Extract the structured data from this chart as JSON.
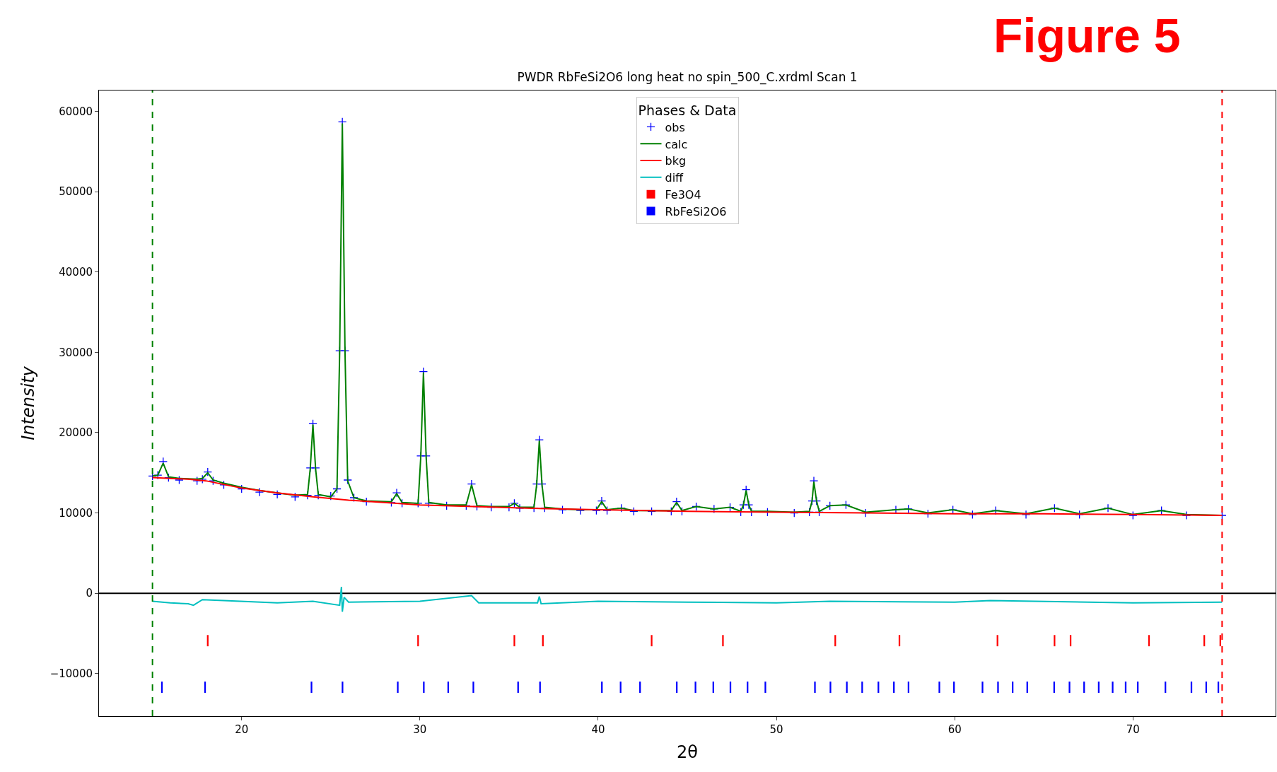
{
  "chart_data": {
    "type": "line",
    "title": "PWDR RbFeSi2O6 long heat no spin_500_C.xrdml Scan 1",
    "xlabel": "2θ",
    "ylabel": "Intensity",
    "legend_title": "Phases & Data",
    "legend": "top",
    "grid": false,
    "annotations": [
      "Figure 5"
    ],
    "xlim": [
      12,
      78
    ],
    "xticks": [
      20,
      30,
      40,
      50,
      60,
      70
    ],
    "ylim": [
      -15300,
      62600
    ],
    "yticks": [
      {
        "value": -10000,
        "label": "−10000"
      },
      0,
      10000,
      20000,
      30000,
      40000,
      50000,
      60000
    ],
    "ref_lines": [
      {
        "axis": "x",
        "value": 15,
        "color": "#008000",
        "line_style": "dashed"
      },
      {
        "axis": "x",
        "value": 75,
        "color": "#ff0000",
        "line_style": "dashed"
      },
      {
        "axis": "y",
        "value": 0,
        "color": "#000000",
        "line_style": "solid"
      }
    ],
    "x": [
      15.0,
      15.3,
      15.6,
      15.9,
      16.5,
      17.5,
      17.8,
      18.1,
      18.4,
      19.0,
      20.0,
      21.0,
      22.0,
      23.0,
      23.7,
      23.85,
      24.0,
      24.15,
      24.3,
      25.0,
      25.35,
      25.5,
      25.65,
      25.8,
      25.95,
      26.3,
      27.0,
      28.4,
      28.7,
      29.0,
      29.9,
      30.05,
      30.2,
      30.35,
      30.5,
      31.5,
      32.6,
      32.9,
      33.2,
      34.0,
      35.0,
      35.3,
      35.6,
      36.4,
      36.55,
      36.7,
      36.85,
      37.0,
      38.0,
      39.0,
      39.9,
      40.2,
      40.5,
      41.3,
      42.0,
      43.0,
      44.1,
      44.4,
      44.7,
      45.5,
      46.5,
      47.4,
      48.0,
      48.15,
      48.3,
      48.45,
      48.6,
      49.5,
      51.0,
      51.85,
      52.0,
      52.1,
      52.25,
      52.4,
      53.0,
      53.9,
      55.0,
      56.7,
      57.4,
      58.5,
      59.9,
      61.0,
      62.3,
      64.0,
      65.6,
      67.0,
      68.6,
      70.0,
      71.6,
      73.0,
      75.0
    ],
    "series": [
      {
        "name": "obs",
        "type": "scatter",
        "marker": "cross",
        "color": "#0000ff",
        "values": [
          14600,
          14700,
          16400,
          14400,
          14100,
          14000,
          14200,
          15100,
          14000,
          13500,
          13000,
          12600,
          12300,
          12000,
          12200,
          15600,
          21100,
          15600,
          12200,
          12100,
          13000,
          30200,
          58700,
          30200,
          14100,
          11900,
          11400,
          11300,
          12500,
          11200,
          11200,
          17100,
          27600,
          17100,
          11200,
          10900,
          10900,
          13600,
          10800,
          10700,
          10700,
          11200,
          10600,
          10600,
          13600,
          19100,
          13600,
          10600,
          10400,
          10300,
          10300,
          11500,
          10300,
          10600,
          10200,
          10200,
          10200,
          11400,
          10200,
          10800,
          10500,
          10700,
          10100,
          11000,
          12900,
          11000,
          10100,
          10100,
          10000,
          10100,
          11500,
          14000,
          11500,
          10100,
          10900,
          11000,
          10000,
          10400,
          10500,
          9900,
          10400,
          9800,
          10300,
          9800,
          10600,
          9800,
          10600,
          9700,
          10300,
          9700,
          9700
        ]
      },
      {
        "name": "calc",
        "color": "#008000",
        "values": [
          14600,
          14700,
          16200,
          14500,
          14300,
          14200,
          14300,
          15000,
          14100,
          13700,
          13200,
          12800,
          12500,
          12200,
          12300,
          15500,
          21000,
          15500,
          12300,
          12000,
          13000,
          30000,
          58500,
          30000,
          14000,
          11900,
          11500,
          11400,
          12400,
          11300,
          11200,
          17000,
          27500,
          17000,
          11300,
          11000,
          11000,
          13500,
          10900,
          10800,
          10800,
          11200,
          10700,
          10700,
          13500,
          19000,
          13500,
          10700,
          10500,
          10400,
          10400,
          11400,
          10400,
          10600,
          10300,
          10300,
          10300,
          11300,
          10300,
          10800,
          10500,
          10700,
          10200,
          11000,
          12800,
          11000,
          10200,
          10200,
          10100,
          10200,
          11500,
          13900,
          11500,
          10200,
          10900,
          11000,
          10100,
          10400,
          10500,
          10000,
          10400,
          9900,
          10300,
          9900,
          10600,
          9900,
          10600,
          9800,
          10300,
          9800,
          9700
        ]
      },
      {
        "name": "bkg",
        "color": "#ff0000",
        "x": [
          15,
          17,
          18,
          20,
          22,
          24,
          26,
          28,
          30,
          33,
          36,
          40,
          45,
          50,
          55,
          60,
          65,
          70,
          75
        ],
        "values": [
          14400,
          14200,
          14000,
          13100,
          12500,
          12000,
          11600,
          11300,
          11000,
          10800,
          10600,
          10400,
          10200,
          10100,
          10000,
          9900,
          9900,
          9800,
          9700
        ]
      },
      {
        "name": "diff",
        "color": "#00bfbf",
        "x": [
          15,
          16,
          17,
          17.3,
          17.8,
          19,
          22,
          24,
          25.5,
          25.6,
          25.65,
          25.75,
          26,
          30,
          32.9,
          33.3,
          36.6,
          36.7,
          36.8,
          40,
          45,
          50,
          53,
          60,
          62,
          70,
          75
        ],
        "values": [
          -1000,
          -1200,
          -1300,
          -1500,
          -800,
          -900,
          -1200,
          -1000,
          -1500,
          800,
          -2300,
          -500,
          -1100,
          -1000,
          -300,
          -1200,
          -1200,
          -400,
          -1300,
          -1000,
          -1100,
          -1200,
          -1000,
          -1100,
          -900,
          -1200,
          -1100
        ]
      },
      {
        "name": "Fe3O4",
        "type": "bar",
        "color": "#ff0000",
        "base": [
          -6600,
          -6600,
          -6600,
          -6600,
          -6600,
          -6600,
          -6600,
          -6600,
          -6600,
          -6600,
          -6600,
          -6600,
          -6600,
          -6600
        ],
        "x": [
          18.1,
          29.9,
          35.3,
          36.9,
          43.0,
          47.0,
          53.3,
          56.9,
          62.4,
          65.6,
          66.5,
          70.9,
          74.0,
          74.9
        ],
        "values": [
          1400,
          1400,
          1400,
          1400,
          1400,
          1400,
          1400,
          1400,
          1400,
          1400,
          1400,
          1400,
          1400,
          1400
        ]
      },
      {
        "name": "RbFeSi2O6",
        "type": "bar",
        "color": "#0000ff",
        "base": [
          -12400,
          -12400,
          -12400,
          -12400,
          -12400,
          -12400,
          -12400,
          -12400,
          -12400,
          -12400,
          -12400,
          -12400,
          -12400,
          -12400,
          -12400,
          -12400,
          -12400,
          -12400,
          -12400,
          -12400,
          -12400,
          -12400,
          -12400,
          -12400,
          -12400,
          -12400,
          -12400,
          -12400,
          -12400,
          -12400,
          -12400,
          -12400,
          -12400,
          -12400,
          -12400,
          -12400,
          -12400,
          -12400,
          -12400,
          -12400,
          -12400,
          -12400,
          -12400
        ],
        "x": [
          15.53,
          17.95,
          23.92,
          25.66,
          28.76,
          30.22,
          31.59,
          33.0,
          35.51,
          36.74,
          40.21,
          41.26,
          42.35,
          44.41,
          45.46,
          46.46,
          47.42,
          48.38,
          49.38,
          52.16,
          53.03,
          53.95,
          54.81,
          55.72,
          56.59,
          57.41,
          59.14,
          59.96,
          61.56,
          62.43,
          63.25,
          64.07,
          65.58,
          66.44,
          67.26,
          68.08,
          68.86,
          69.59,
          70.27,
          71.82,
          73.28,
          74.11,
          74.79
        ],
        "values": [
          1400,
          1400,
          1400,
          1400,
          1400,
          1400,
          1400,
          1400,
          1400,
          1400,
          1400,
          1400,
          1400,
          1400,
          1400,
          1400,
          1400,
          1400,
          1400,
          1400,
          1400,
          1400,
          1400,
          1400,
          1400,
          1400,
          1400,
          1400,
          1400,
          1400,
          1400,
          1400,
          1400,
          1400,
          1400,
          1400,
          1400,
          1400,
          1400,
          1400,
          1400,
          1400,
          1400
        ]
      }
    ]
  }
}
